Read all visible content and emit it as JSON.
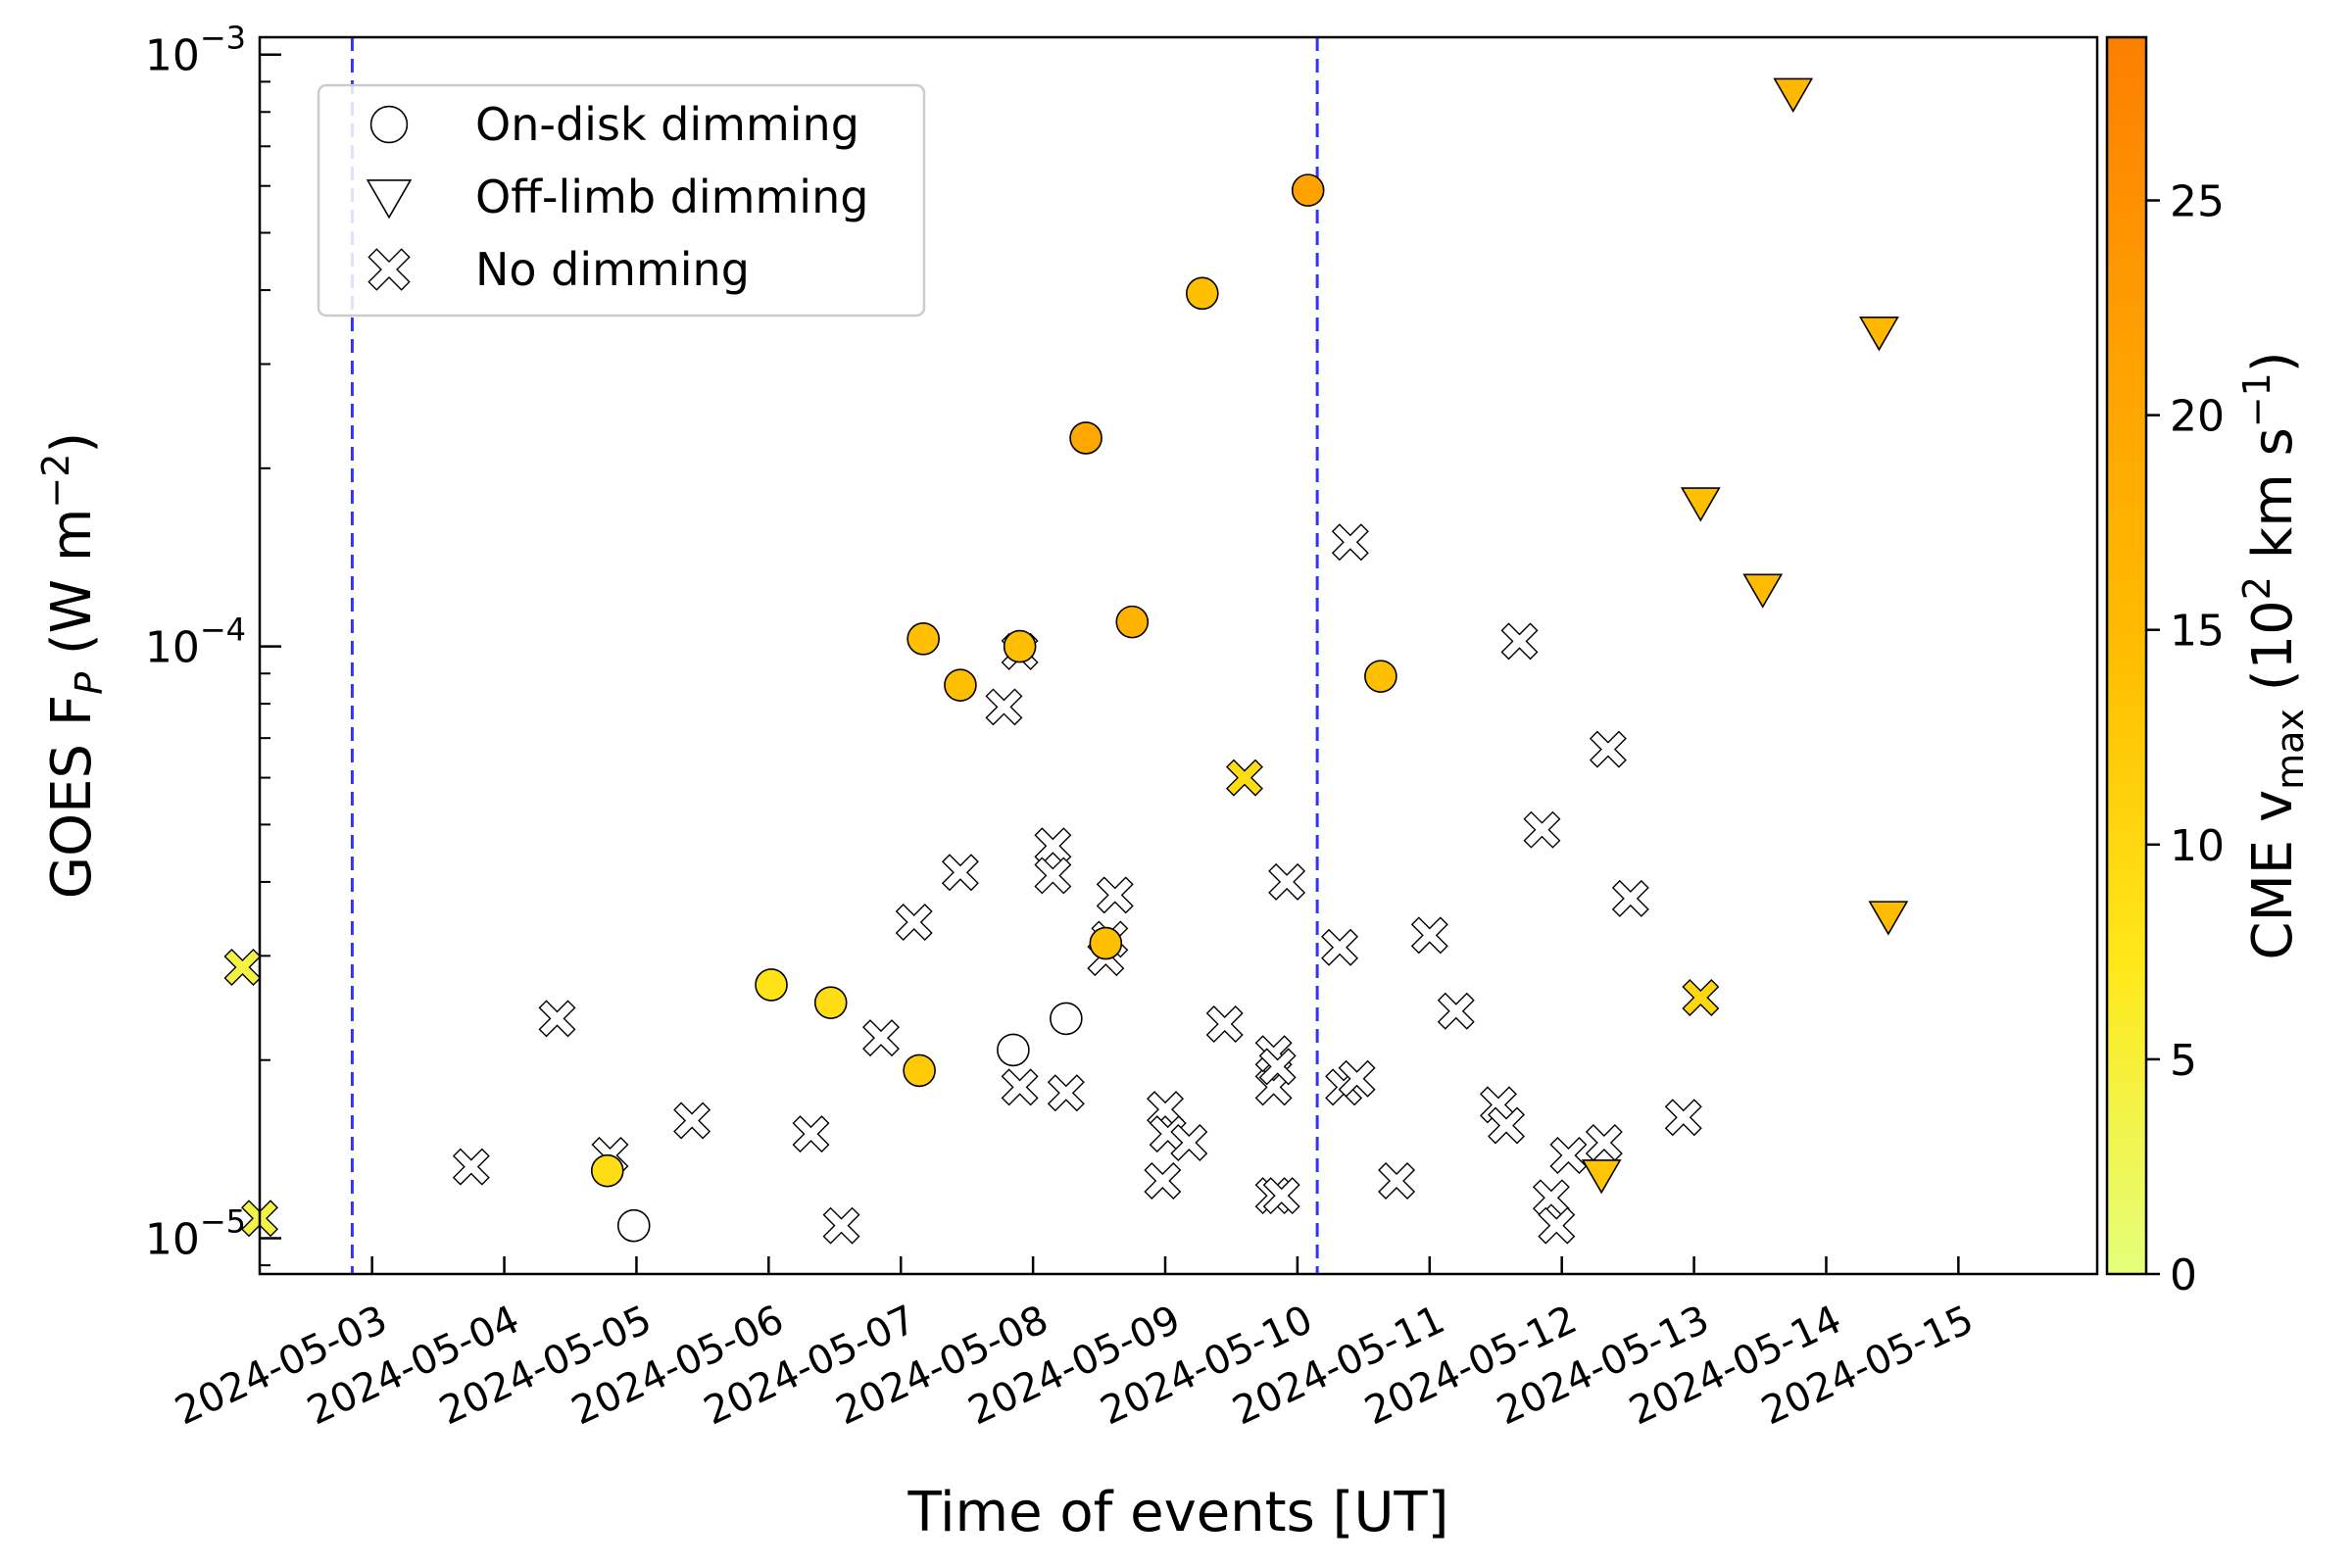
{
  "chart_data": {
    "type": "scatter",
    "xlabel": "Time of events [UT]",
    "ylabel": {
      "base": "GOES F",
      "sub": "P",
      "unit_open": " (W m",
      "unit_sup": "−2",
      "unit_close": ")"
    },
    "yscale": "log",
    "xlim": [
      -0.85,
      13.05
    ],
    "ylim": [
      8.7e-06,
      0.00107
    ],
    "x_ticks": [
      {
        "x": 0,
        "label": "2024-05-03"
      },
      {
        "x": 1,
        "label": "2024-05-04"
      },
      {
        "x": 2,
        "label": "2024-05-05"
      },
      {
        "x": 3,
        "label": "2024-05-06"
      },
      {
        "x": 4,
        "label": "2024-05-07"
      },
      {
        "x": 5,
        "label": "2024-05-08"
      },
      {
        "x": 6,
        "label": "2024-05-09"
      },
      {
        "x": 7,
        "label": "2024-05-10"
      },
      {
        "x": 8,
        "label": "2024-05-11"
      },
      {
        "x": 9,
        "label": "2024-05-12"
      },
      {
        "x": 10,
        "label": "2024-05-13"
      },
      {
        "x": 11,
        "label": "2024-05-14"
      },
      {
        "x": 12,
        "label": "2024-05-15"
      }
    ],
    "y_ticks": [
      {
        "y": 1e-05,
        "base": "10",
        "exp": "−5"
      },
      {
        "y": 0.0001,
        "base": "10",
        "exp": "−4"
      },
      {
        "y": 0.001,
        "base": "10",
        "exp": "−3"
      }
    ],
    "vlines": [
      {
        "x": -0.15,
        "color": "#3333ff"
      },
      {
        "x": 7.15,
        "color": "#3333ff"
      }
    ],
    "legend": {
      "position": "upper-left",
      "entries": [
        {
          "marker": "circle",
          "label": "On-disk dimming"
        },
        {
          "marker": "triangle",
          "label": "Off-limb dimming"
        },
        {
          "marker": "x",
          "label": "No dimming"
        }
      ]
    },
    "colorbar": {
      "label": {
        "main": "CME v",
        "sub": "max",
        "unit_open": " (10",
        "unit_sup": "2",
        "unit_mid": " km s",
        "unit_sup2": "−1",
        "unit_close": ")"
      },
      "range": [
        0,
        28.8
      ],
      "ticks": [
        0,
        5,
        10,
        15,
        20,
        25
      ],
      "colormap": "Wistia",
      "cmap_stops": [
        "#e4ff7a",
        "#ffe81a",
        "#ffbd00",
        "#ffa000",
        "#fc7f00"
      ]
    },
    "series": [
      {
        "name": "On-disk dimming",
        "marker": "circle",
        "points": [
          {
            "x": 1.98,
            "y": 1.05e-05,
            "v": null
          },
          {
            "x": 1.78,
            "y": 1.3e-05,
            "v": 9
          },
          {
            "x": 3.02,
            "y": 2.68e-05,
            "v": 8
          },
          {
            "x": 3.47,
            "y": 2.5e-05,
            "v": 9
          },
          {
            "x": 4.14,
            "y": 1.92e-05,
            "v": 12
          },
          {
            "x": 4.17,
            "y": 0.000103,
            "v": 14
          },
          {
            "x": 4.45,
            "y": 8.6e-05,
            "v": 14
          },
          {
            "x": 4.85,
            "y": 2.08e-05,
            "v": null
          },
          {
            "x": 4.9,
            "y": 0.0001,
            "v": 14
          },
          {
            "x": 5.25,
            "y": 2.35e-05,
            "v": null
          },
          {
            "x": 5.4,
            "y": 0.000225,
            "v": 20
          },
          {
            "x": 5.55,
            "y": 3.15e-05,
            "v": 14
          },
          {
            "x": 5.75,
            "y": 0.00011,
            "v": 17
          },
          {
            "x": 6.28,
            "y": 0.000395,
            "v": 14
          },
          {
            "x": 7.08,
            "y": 0.00059,
            "v": 21
          },
          {
            "x": 7.63,
            "y": 8.9e-05,
            "v": 14
          }
        ]
      },
      {
        "name": "Off-limb dimming",
        "marker": "triangle",
        "points": [
          {
            "x": 9.3,
            "y": 1.28e-05,
            "v": 13
          },
          {
            "x": 10.05,
            "y": 0.000175,
            "v": 14
          },
          {
            "x": 10.52,
            "y": 0.000125,
            "v": 15
          },
          {
            "x": 10.75,
            "y": 0.00086,
            "v": 16
          },
          {
            "x": 11.4,
            "y": 0.00034,
            "v": 16
          },
          {
            "x": 11.47,
            "y": 3.5e-05,
            "v": 15
          }
        ]
      },
      {
        "name": "No dimming",
        "marker": "x",
        "points": [
          {
            "x": -0.98,
            "y": 2.87e-05,
            "v": 4
          },
          {
            "x": -0.85,
            "y": 1.08e-05,
            "v": 4
          },
          {
            "x": 0.75,
            "y": 1.32e-05,
            "v": null
          },
          {
            "x": 1.4,
            "y": 2.35e-05,
            "v": null
          },
          {
            "x": 1.8,
            "y": 1.38e-05,
            "v": null
          },
          {
            "x": 2.42,
            "y": 1.58e-05,
            "v": null
          },
          {
            "x": 3.32,
            "y": 1.5e-05,
            "v": null
          },
          {
            "x": 3.55,
            "y": 1.05e-05,
            "v": null
          },
          {
            "x": 3.85,
            "y": 2.18e-05,
            "v": null
          },
          {
            "x": 4.1,
            "y": 3.42e-05,
            "v": null
          },
          {
            "x": 4.45,
            "y": 4.15e-05,
            "v": null
          },
          {
            "x": 4.78,
            "y": 7.9e-05,
            "v": null
          },
          {
            "x": 4.9,
            "y": 1.8e-05,
            "v": null
          },
          {
            "x": 4.9,
            "y": 9.8e-05,
            "v": null
          },
          {
            "x": 5.15,
            "y": 4.6e-05,
            "v": null
          },
          {
            "x": 5.15,
            "y": 4.1e-05,
            "v": null
          },
          {
            "x": 5.25,
            "y": 1.76e-05,
            "v": null
          },
          {
            "x": 5.55,
            "y": 2.98e-05,
            "v": null
          },
          {
            "x": 5.58,
            "y": 3.2e-05,
            "v": null
          },
          {
            "x": 5.62,
            "y": 3.8e-05,
            "v": null
          },
          {
            "x": 5.98,
            "y": 1.25e-05,
            "v": null
          },
          {
            "x": 6.0,
            "y": 1.65e-05,
            "v": null
          },
          {
            "x": 6.02,
            "y": 1.5e-05,
            "v": null
          },
          {
            "x": 6.18,
            "y": 1.45e-05,
            "v": null
          },
          {
            "x": 6.45,
            "y": 2.3e-05,
            "v": null
          },
          {
            "x": 6.6,
            "y": 6e-05,
            "v": 9
          },
          {
            "x": 6.82,
            "y": 1.8e-05,
            "v": null
          },
          {
            "x": 6.82,
            "y": 2.05e-05,
            "v": null
          },
          {
            "x": 6.82,
            "y": 1.18e-05,
            "v": null
          },
          {
            "x": 6.85,
            "y": 1.95e-05,
            "v": null
          },
          {
            "x": 6.88,
            "y": 1.18e-05,
            "v": null
          },
          {
            "x": 6.92,
            "y": 4e-05,
            "v": null
          },
          {
            "x": 7.32,
            "y": 3.1e-05,
            "v": null
          },
          {
            "x": 7.35,
            "y": 1.8e-05,
            "v": null
          },
          {
            "x": 7.45,
            "y": 1.86e-05,
            "v": null
          },
          {
            "x": 7.4,
            "y": 0.00015,
            "v": null
          },
          {
            "x": 7.75,
            "y": 1.25e-05,
            "v": null
          },
          {
            "x": 8.0,
            "y": 3.25e-05,
            "v": null
          },
          {
            "x": 8.2,
            "y": 2.42e-05,
            "v": null
          },
          {
            "x": 8.52,
            "y": 1.68e-05,
            "v": null
          },
          {
            "x": 8.58,
            "y": 1.55e-05,
            "v": null
          },
          {
            "x": 8.68,
            "y": 0.000102,
            "v": null
          },
          {
            "x": 8.85,
            "y": 4.9e-05,
            "v": null
          },
          {
            "x": 8.92,
            "y": 1.17e-05,
            "v": null
          },
          {
            "x": 8.96,
            "y": 1.05e-05,
            "v": null
          },
          {
            "x": 9.05,
            "y": 1.38e-05,
            "v": null
          },
          {
            "x": 9.32,
            "y": 1.45e-05,
            "v": null
          },
          {
            "x": 9.35,
            "y": 6.7e-05,
            "v": null
          },
          {
            "x": 9.52,
            "y": 3.75e-05,
            "v": null
          },
          {
            "x": 9.92,
            "y": 1.6e-05,
            "v": null
          },
          {
            "x": 10.05,
            "y": 2.55e-05,
            "v": 10
          }
        ]
      }
    ]
  }
}
